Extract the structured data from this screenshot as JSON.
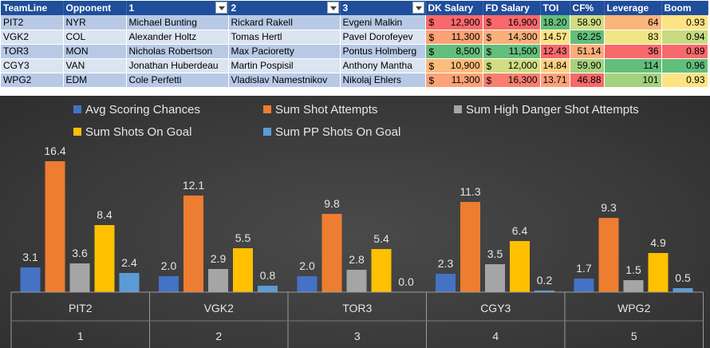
{
  "table": {
    "headers": [
      "TeamLine",
      "Opponent",
      "1",
      "2",
      "3",
      "DK Salary",
      "FD Salary",
      "TOI",
      "CF%",
      "Leverage",
      "Boom"
    ],
    "currency_symbol": "$",
    "rows": [
      {
        "teamline": "PIT2",
        "opponent": "NYR",
        "p1": "Michael Bunting",
        "p2": "Rickard Rakell",
        "p3": "Evgeni Malkin",
        "dk": "12,900",
        "fd": "16,900",
        "toi": "18.20",
        "cf": "58.90",
        "leverage": "64",
        "boom": "0.93"
      },
      {
        "teamline": "VGK2",
        "opponent": "COL",
        "p1": "Alexander Holtz",
        "p2": "Tomas Hertl",
        "p3": "Pavel Dorofeyev",
        "dk": "11,300",
        "fd": "14,300",
        "toi": "14.57",
        "cf": "62.25",
        "leverage": "83",
        "boom": "0.94"
      },
      {
        "teamline": "TOR3",
        "opponent": "MON",
        "p1": "Nicholas Robertson",
        "p2": "Max Pacioretty",
        "p3": "Pontus Holmberg",
        "dk": "8,500",
        "fd": "11,500",
        "toi": "12.43",
        "cf": "51.14",
        "leverage": "36",
        "boom": "0.89"
      },
      {
        "teamline": "CGY3",
        "opponent": "VAN",
        "p1": "Jonathan Huberdeau",
        "p2": "Martin Pospisil",
        "p3": "Anthony Mantha",
        "dk": "10,900",
        "fd": "12,000",
        "toi": "14.84",
        "cf": "59.90",
        "leverage": "114",
        "boom": "0.96"
      },
      {
        "teamline": "WPG2",
        "opponent": "EDM",
        "p1": "Cole Perfetti",
        "p2": "Vladislav Namestnikov",
        "p3": "Nikolaj Ehlers",
        "dk": "11,300",
        "fd": "16,300",
        "toi": "13.71",
        "cf": "46.88",
        "leverage": "101",
        "boom": "0.93"
      }
    ],
    "cell_colors": {
      "dk": [
        "#f8696b",
        "#fba276",
        "#63be7b",
        "#fcbc7b",
        "#fba276"
      ],
      "fd": [
        "#f8696b",
        "#fbb079",
        "#63be7b",
        "#cfde82",
        "#f87f70"
      ],
      "toi": [
        "#63be7b",
        "#fee282",
        "#f8696b",
        "#fdd17f",
        "#fca27a"
      ],
      "cf": [
        "#d0dd82",
        "#63be7b",
        "#fcac78",
        "#a8d27f",
        "#f8696b"
      ],
      "leverage": [
        "#fbb57a",
        "#f0e784",
        "#f8696b",
        "#63be7b",
        "#a4d17e"
      ],
      "boom": [
        "#fde383",
        "#c7da81",
        "#f8696b",
        "#63be7b",
        "#fde383"
      ]
    }
  },
  "chart_data": {
    "type": "bar",
    "categories": [
      {
        "name": "PIT2",
        "index": "1"
      },
      {
        "name": "VGK2",
        "index": "2"
      },
      {
        "name": "TOR3",
        "index": "3"
      },
      {
        "name": "CGY3",
        "index": "4"
      },
      {
        "name": "WPG2",
        "index": "5"
      }
    ],
    "series": [
      {
        "name": "Avg Scoring Chances",
        "color": "#4472c4",
        "values": [
          3.1,
          2.0,
          2.0,
          2.3,
          1.7
        ]
      },
      {
        "name": "Sum Shot Attempts",
        "color": "#ed7d31",
        "values": [
          16.4,
          12.1,
          9.8,
          11.3,
          9.3
        ]
      },
      {
        "name": "Sum High Danger Shot Attempts",
        "color": "#a5a5a5",
        "values": [
          3.6,
          2.9,
          2.8,
          3.5,
          1.5
        ]
      },
      {
        "name": "Sum Shots On Goal",
        "color": "#ffc000",
        "values": [
          8.4,
          5.5,
          5.4,
          6.4,
          4.9
        ]
      },
      {
        "name": "Sum PP Shots On Goal",
        "color": "#5b9bd5",
        "values": [
          2.4,
          0.8,
          0.0,
          0.2,
          0.5
        ]
      }
    ],
    "ylim": [
      0,
      17
    ],
    "legend_position": "top",
    "grid": false
  }
}
